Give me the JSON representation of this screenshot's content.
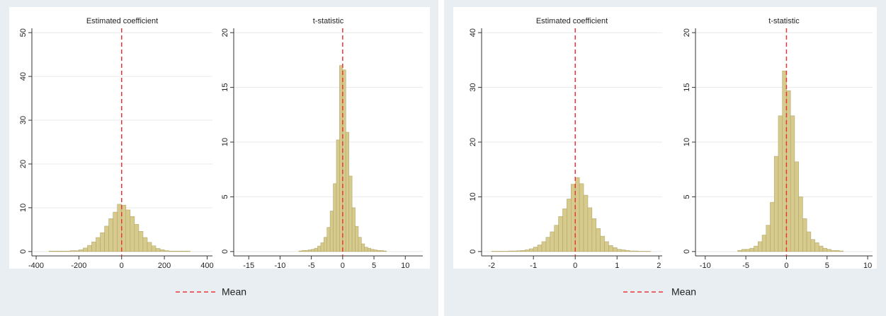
{
  "chart_data": [
    {
      "type": "histogram",
      "title": "Estimated coefficient",
      "bins": [
        -340,
        -320,
        -300,
        -280,
        -260,
        -240,
        -220,
        -200,
        -180,
        -160,
        -140,
        -120,
        -100,
        -80,
        -60,
        -40,
        -20,
        0,
        20,
        40,
        60,
        80,
        100,
        120,
        140,
        160,
        180,
        200,
        220,
        240,
        260,
        280,
        300,
        320
      ],
      "values": [
        0.1,
        0.1,
        0.1,
        0.1,
        0.1,
        0.2,
        0.2,
        0.4,
        0.8,
        1.4,
        2.2,
        3.2,
        4.3,
        5.8,
        7.5,
        9.0,
        10.8,
        10.6,
        9.5,
        8.0,
        6.2,
        4.6,
        3.2,
        2.1,
        1.3,
        0.7,
        0.4,
        0.2,
        0.1,
        0.1,
        0.1,
        0.1,
        0.1
      ],
      "color": "#d6ca8c",
      "mean": 0,
      "mean_color": "#e8373a",
      "xlim": [
        -420,
        425
      ],
      "xticks": [
        -400,
        -200,
        0,
        200,
        400
      ],
      "ylim": [
        -1,
        51
      ],
      "yticks": [
        0,
        10,
        20,
        30,
        40,
        50
      ],
      "grid": true,
      "legend": "Mean"
    },
    {
      "type": "histogram",
      "title": "t-statistic",
      "bins": [
        -7,
        -6.5,
        -6,
        -5.5,
        -5,
        -4.5,
        -4,
        -3.5,
        -3,
        -2.5,
        -2,
        -1.5,
        -1,
        -0.5,
        0,
        0.5,
        1,
        1.5,
        2,
        2.5,
        3,
        3.5,
        4,
        4.5,
        5,
        5.5,
        6,
        6.5,
        7
      ],
      "values": [
        0.05,
        0.1,
        0.1,
        0.15,
        0.2,
        0.3,
        0.5,
        0.8,
        1.3,
        2.2,
        3.7,
        6.2,
        10.2,
        17.0,
        16.6,
        10.9,
        6.9,
        4.0,
        2.3,
        1.3,
        0.7,
        0.4,
        0.3,
        0.2,
        0.15,
        0.1,
        0.1,
        0.05
      ],
      "color": "#d6ca8c",
      "mean": 0,
      "mean_color": "#e8373a",
      "xlim": [
        -17.4,
        12.8
      ],
      "xticks": [
        -15,
        -10,
        -5,
        0,
        5,
        10
      ],
      "ylim": [
        -0.4,
        20.4
      ],
      "yticks": [
        0,
        5,
        10,
        15,
        20
      ],
      "grid": true
    },
    {
      "type": "histogram",
      "title": "Estimated coefficient",
      "bins": [
        -2,
        -1.9,
        -1.8,
        -1.7,
        -1.6,
        -1.5,
        -1.4,
        -1.3,
        -1.2,
        -1.1,
        -1,
        -0.9,
        -0.8,
        -0.7,
        -0.6,
        -0.5,
        -0.4,
        -0.3,
        -0.2,
        -0.1,
        0,
        0.1,
        0.2,
        0.3,
        0.4,
        0.5,
        0.6,
        0.7,
        0.8,
        0.9,
        1,
        1.1,
        1.2,
        1.3,
        1.4,
        1.5,
        1.6,
        1.7,
        1.8
      ],
      "values": [
        0.05,
        0.05,
        0.05,
        0.05,
        0.1,
        0.1,
        0.15,
        0.2,
        0.3,
        0.5,
        0.8,
        1.2,
        1.8,
        2.6,
        3.6,
        4.8,
        6.4,
        7.8,
        9.6,
        12.3,
        13.5,
        12.4,
        10.3,
        8.0,
        6.0,
        4.2,
        2.8,
        1.8,
        1.1,
        0.7,
        0.4,
        0.3,
        0.2,
        0.1,
        0.1,
        0.05,
        0.05,
        0.05
      ],
      "color": "#d6ca8c",
      "mean": 0,
      "mean_color": "#e8373a",
      "xlim": [
        -2.24,
        2.08
      ],
      "xticks": [
        -2,
        -1,
        0,
        1,
        2
      ],
      "ylim": [
        -0.8,
        40.8
      ],
      "yticks": [
        0,
        10,
        20,
        30,
        40
      ],
      "grid": true,
      "legend": "Mean"
    },
    {
      "type": "histogram",
      "title": "t-statistic",
      "bins": [
        -6,
        -5.5,
        -5,
        -4.5,
        -4,
        -3.5,
        -3,
        -2.5,
        -2,
        -1.5,
        -1,
        -0.5,
        0,
        0.5,
        1,
        1.5,
        2,
        2.5,
        3,
        3.5,
        4,
        4.5,
        5,
        5.5,
        6,
        6.5,
        7
      ],
      "values": [
        0.1,
        0.2,
        0.2,
        0.3,
        0.5,
        0.9,
        1.5,
        2.4,
        4.5,
        8.7,
        12.4,
        16.5,
        14.7,
        12.4,
        8.2,
        5.0,
        3.0,
        1.8,
        1.1,
        0.8,
        0.5,
        0.3,
        0.2,
        0.1,
        0.1,
        0.05
      ],
      "color": "#d6ca8c",
      "mean": 0,
      "mean_color": "#e8373a",
      "xlim": [
        -11.2,
        10.6
      ],
      "xticks": [
        -10,
        -5,
        0,
        5,
        10
      ],
      "ylim": [
        -0.4,
        20.4
      ],
      "yticks": [
        0,
        5,
        10,
        15,
        20
      ],
      "grid": true
    }
  ]
}
